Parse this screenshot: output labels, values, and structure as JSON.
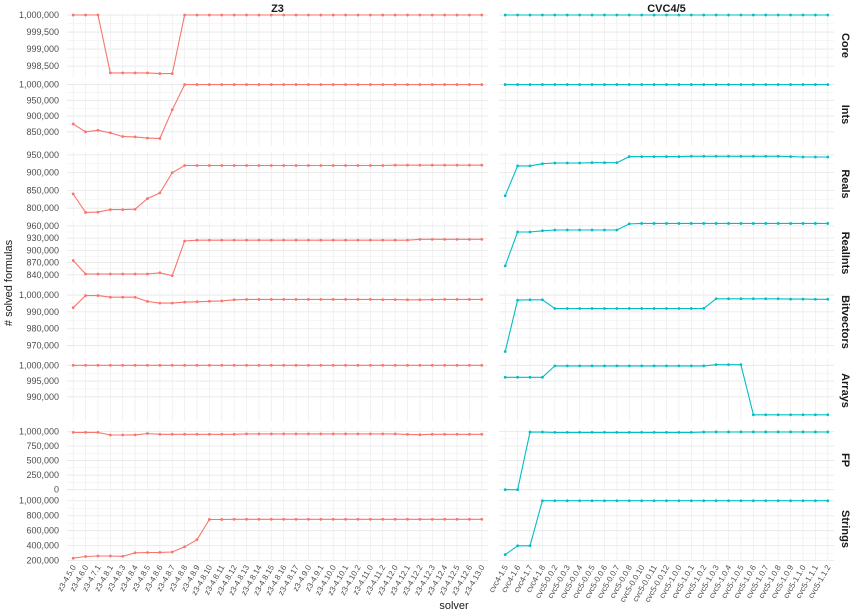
{
  "chart_data": {
    "type": "line",
    "xlabel": "solver",
    "ylabel": "# solved formulas",
    "facet_cols": [
      {
        "name": "Z3",
        "color": "#f8766d"
      },
      {
        "name": "CVC4/5",
        "color": "#00bfc4"
      }
    ],
    "facet_rows": [
      {
        "name": "Core",
        "ylim": [
          998150,
          1000060
        ],
        "yticks": [
          998500,
          999000,
          999500,
          1000000
        ],
        "ytick_labels": [
          "998,500",
          "999,000",
          "999,500",
          "1,000,000"
        ]
      },
      {
        "name": "Ints",
        "ylim": [
          805000,
          1005000
        ],
        "yticks": [
          850000,
          900000,
          950000,
          1000000
        ],
        "ytick_labels": [
          "850,000",
          "900,000",
          "950,000",
          "1,000,000"
        ]
      },
      {
        "name": "Reals",
        "ylim": [
          778000,
          958000
        ],
        "yticks": [
          800000,
          850000,
          900000,
          950000
        ],
        "ytick_labels": [
          "800,000",
          "850,000",
          "900,000",
          "950,000"
        ]
      },
      {
        "name": "RealInts",
        "ylim": [
          815000,
          972000
        ],
        "yticks": [
          840000,
          870000,
          900000,
          930000,
          960000
        ],
        "ytick_labels": [
          "840,000",
          "870,000",
          "900,000",
          "930,000",
          "960,000"
        ]
      },
      {
        "name": "Bitvectors",
        "ylim": [
          965000,
          1003000
        ],
        "yticks": [
          970000,
          980000,
          990000,
          1000000
        ],
        "ytick_labels": [
          "970,000",
          "980,000",
          "990,000",
          "1,000,000"
        ]
      },
      {
        "name": "Arrays",
        "ylim": [
          982000,
          1002000
        ],
        "yticks": [
          990000,
          995000,
          1000000
        ],
        "ytick_labels": [
          "990,000",
          "995,000",
          "1,000,000"
        ]
      },
      {
        "name": "FP",
        "ylim": [
          -40000,
          1060000
        ],
        "yticks": [
          0,
          250000,
          500000,
          750000,
          1000000
        ],
        "ytick_labels": [
          "0",
          "250,000",
          "500,000",
          "750,000",
          "1,000,000"
        ]
      },
      {
        "name": "Strings",
        "ylim": [
          195000,
          1050000
        ],
        "yticks": [
          200000,
          400000,
          600000,
          800000,
          1000000
        ],
        "ytick_labels": [
          "200,000",
          "400,000",
          "600,000",
          "800,000",
          "1,000,000"
        ]
      }
    ],
    "categories": {
      "Z3": [
        "z3-4.5.0",
        "z3-4.6.0",
        "z3-4.7.1",
        "z3-4.8.1",
        "z3-4.8.3",
        "z3-4.8.4",
        "z3-4.8.5",
        "z3-4.8.6",
        "z3-4.8.7",
        "z3-4.8.8",
        "z3-4.8.9",
        "z3-4.8.10",
        "z3-4.8.11",
        "z3-4.8.12",
        "z3-4.8.13",
        "z3-4.8.14",
        "z3-4.8.15",
        "z3-4.8.16",
        "z3-4.8.17",
        "z3-4.9.0",
        "z3-4.9.1",
        "z3-4.10.0",
        "z3-4.10.1",
        "z3-4.10.2",
        "z3-4.11.0",
        "z3-4.11.2",
        "z3-4.12.0",
        "z3-4.12.1",
        "z3-4.12.2",
        "z3-4.12.3",
        "z3-4.12.4",
        "z3-4.12.5",
        "z3-4.12.6",
        "z3-4.13.0"
      ],
      "CVC4/5": [
        "cvc4-1.5",
        "cvc4-1.6",
        "cvc4-1.7",
        "cvc4-1.8",
        "cvc5-0.0.2",
        "cvc5-0.0.3",
        "cvc5-0.0.4",
        "cvc5-0.0.5",
        "cvc5-0.0.6",
        "cvc5-0.0.7",
        "cvc5-0.0.8",
        "cvc5-0.0.10",
        "cvc5-0.0.11",
        "cvc5-0.0.12",
        "cvc5-1.0.0",
        "cvc5-1.0.1",
        "cvc5-1.0.2",
        "cvc5-1.0.3",
        "cvc5-1.0.4",
        "cvc5-1.0.5",
        "cvc5-1.0.6",
        "cvc5-1.0.7",
        "cvc5-1.0.8",
        "cvc5-1.0.9",
        "cvc5-1.1.0",
        "cvc5-1.1.1",
        "cvc5-1.1.2"
      ]
    },
    "series": {
      "Z3": {
        "Core": [
          1000000,
          1000000,
          1000000,
          998300,
          998300,
          998300,
          998300,
          998280,
          998280,
          1000000,
          1000000,
          1000000,
          1000000,
          1000000,
          1000000,
          1000000,
          1000000,
          1000000,
          1000000,
          1000000,
          1000000,
          1000000,
          1000000,
          1000000,
          1000000,
          1000000,
          1000000,
          1000000,
          1000000,
          1000000,
          1000000,
          1000000,
          1000000,
          1000000
        ],
        "Ints": [
          875000,
          850000,
          855000,
          847000,
          835000,
          834000,
          830000,
          829000,
          920000,
          1000000,
          1000000,
          1000000,
          1000000,
          1000000,
          1000000,
          1000000,
          1000000,
          1000000,
          1000000,
          1000000,
          1000000,
          1000000,
          1000000,
          1000000,
          1000000,
          1000000,
          1000000,
          1000000,
          1000000,
          1000000,
          1000000,
          1000000,
          1000000,
          1000000
        ],
        "Reals": [
          840000,
          788000,
          789000,
          796000,
          796000,
          797000,
          827000,
          843000,
          900000,
          920000,
          920000,
          920000,
          920000,
          920000,
          920000,
          920000,
          920000,
          920000,
          920000,
          920000,
          920000,
          920000,
          920000,
          920000,
          920000,
          920000,
          921000,
          921000,
          921000,
          921000,
          921000,
          921000,
          921000,
          921000
        ],
        "RealInts": [
          875000,
          842000,
          842000,
          842000,
          842000,
          842000,
          842000,
          845000,
          838000,
          923000,
          925000,
          925000,
          925000,
          925000,
          925000,
          925000,
          925000,
          925000,
          925000,
          925000,
          925000,
          925000,
          925000,
          925000,
          925000,
          925000,
          925000,
          925000,
          927000,
          927000,
          927000,
          927000,
          927000,
          927000
        ],
        "Bitvectors": [
          992500,
          999700,
          999700,
          998700,
          998700,
          998700,
          996200,
          995200,
          995200,
          995800,
          996000,
          996300,
          996500,
          997200,
          997400,
          997400,
          997400,
          997400,
          997400,
          997400,
          997400,
          997400,
          997400,
          997400,
          997400,
          997300,
          997300,
          997200,
          997200,
          997300,
          997400,
          997400,
          997400,
          997400
        ],
        "Arrays": [
          1000000,
          1000000,
          1000000,
          1000000,
          1000000,
          1000000,
          1000000,
          1000000,
          1000000,
          1000000,
          1000000,
          1000000,
          1000000,
          1000000,
          1000000,
          1000000,
          1000000,
          1000000,
          1000000,
          1000000,
          1000000,
          1000000,
          1000000,
          1000000,
          1000000,
          1000000,
          1000000,
          1000000,
          1000000,
          1000000,
          1000000,
          1000000,
          1000000,
          1000000
        ],
        "FP": [
          985000,
          985000,
          985000,
          940000,
          940000,
          942000,
          965000,
          952000,
          952000,
          952000,
          952000,
          952000,
          952000,
          952000,
          958000,
          958000,
          958000,
          958000,
          958000,
          958000,
          958000,
          958000,
          958000,
          958000,
          958000,
          958000,
          958000,
          950000,
          945000,
          952000,
          952000,
          952000,
          952000,
          952000
        ],
        "Strings": [
          232000,
          255000,
          262000,
          262000,
          258000,
          305000,
          308000,
          310000,
          315000,
          385000,
          480000,
          750000,
          750000,
          752000,
          752000,
          752000,
          752000,
          752000,
          752000,
          752000,
          752000,
          752000,
          752000,
          752000,
          752000,
          752000,
          752000,
          752000,
          752000,
          752000,
          752000,
          752000,
          752000,
          752000
        ]
      },
      "CVC4/5": {
        "Core": [
          1000000,
          1000000,
          1000000,
          1000000,
          1000000,
          1000000,
          1000000,
          1000000,
          1000000,
          1000000,
          1000000,
          1000000,
          1000000,
          1000000,
          1000000,
          1000000,
          1000000,
          1000000,
          1000000,
          1000000,
          1000000,
          1000000,
          1000000,
          1000000,
          1000000,
          1000000,
          1000000
        ],
        "Ints": [
          1000000,
          1000000,
          1000000,
          1000000,
          1000000,
          1000000,
          1000000,
          1000000,
          1000000,
          1000000,
          1000000,
          1000000,
          1000000,
          1000000,
          1000000,
          1000000,
          1000000,
          1000000,
          1000000,
          1000000,
          1000000,
          1000000,
          1000000,
          1000000,
          1000000,
          1000000,
          1000000
        ],
        "Reals": [
          835000,
          919000,
          919000,
          925000,
          927000,
          927000,
          927000,
          928000,
          928000,
          928000,
          945000,
          945000,
          945000,
          945000,
          945000,
          946000,
          946000,
          946000,
          946000,
          946000,
          946000,
          946000,
          946000,
          945000,
          944000,
          944000,
          944000
        ],
        "RealInts": [
          862000,
          945000,
          945000,
          948000,
          950000,
          950000,
          950000,
          950000,
          950000,
          950000,
          965000,
          966000,
          966000,
          966000,
          966000,
          966000,
          966000,
          966000,
          966000,
          966000,
          966000,
          966000,
          966000,
          966000,
          966000,
          966000,
          966000
        ],
        "Bitvectors": [
          966500,
          997000,
          997200,
          997200,
          992000,
          992000,
          992000,
          992000,
          992000,
          992000,
          992000,
          992000,
          992000,
          992000,
          992000,
          992000,
          992100,
          997800,
          997800,
          997800,
          997800,
          997800,
          997800,
          997600,
          997600,
          997500,
          997500
        ],
        "Arrays": [
          996200,
          996200,
          996200,
          996200,
          999800,
          999800,
          999800,
          999800,
          999800,
          999800,
          999800,
          999800,
          999800,
          999800,
          999800,
          999800,
          999800,
          1000200,
          1000200,
          1000200,
          984300,
          984300,
          984300,
          984300,
          984300,
          984300,
          984300
        ],
        "FP": [
          0,
          0,
          990000,
          990000,
          985000,
          985000,
          985000,
          985000,
          985000,
          985000,
          985000,
          985000,
          985000,
          985000,
          985000,
          985000,
          990000,
          992000,
          992000,
          992000,
          992000,
          992000,
          992000,
          992000,
          992000,
          992000,
          992000
        ],
        "Strings": [
          280000,
          398000,
          398000,
          1000000,
          1000000,
          1000000,
          1000000,
          1000000,
          1000000,
          1000000,
          1000000,
          1000000,
          1000000,
          1000000,
          1000000,
          1000000,
          1000000,
          1000000,
          1000000,
          1000000,
          1000000,
          1000000,
          1000000,
          1000000,
          1000000,
          1000000,
          1000000
        ]
      }
    },
    "grid": true,
    "legend": "none"
  }
}
